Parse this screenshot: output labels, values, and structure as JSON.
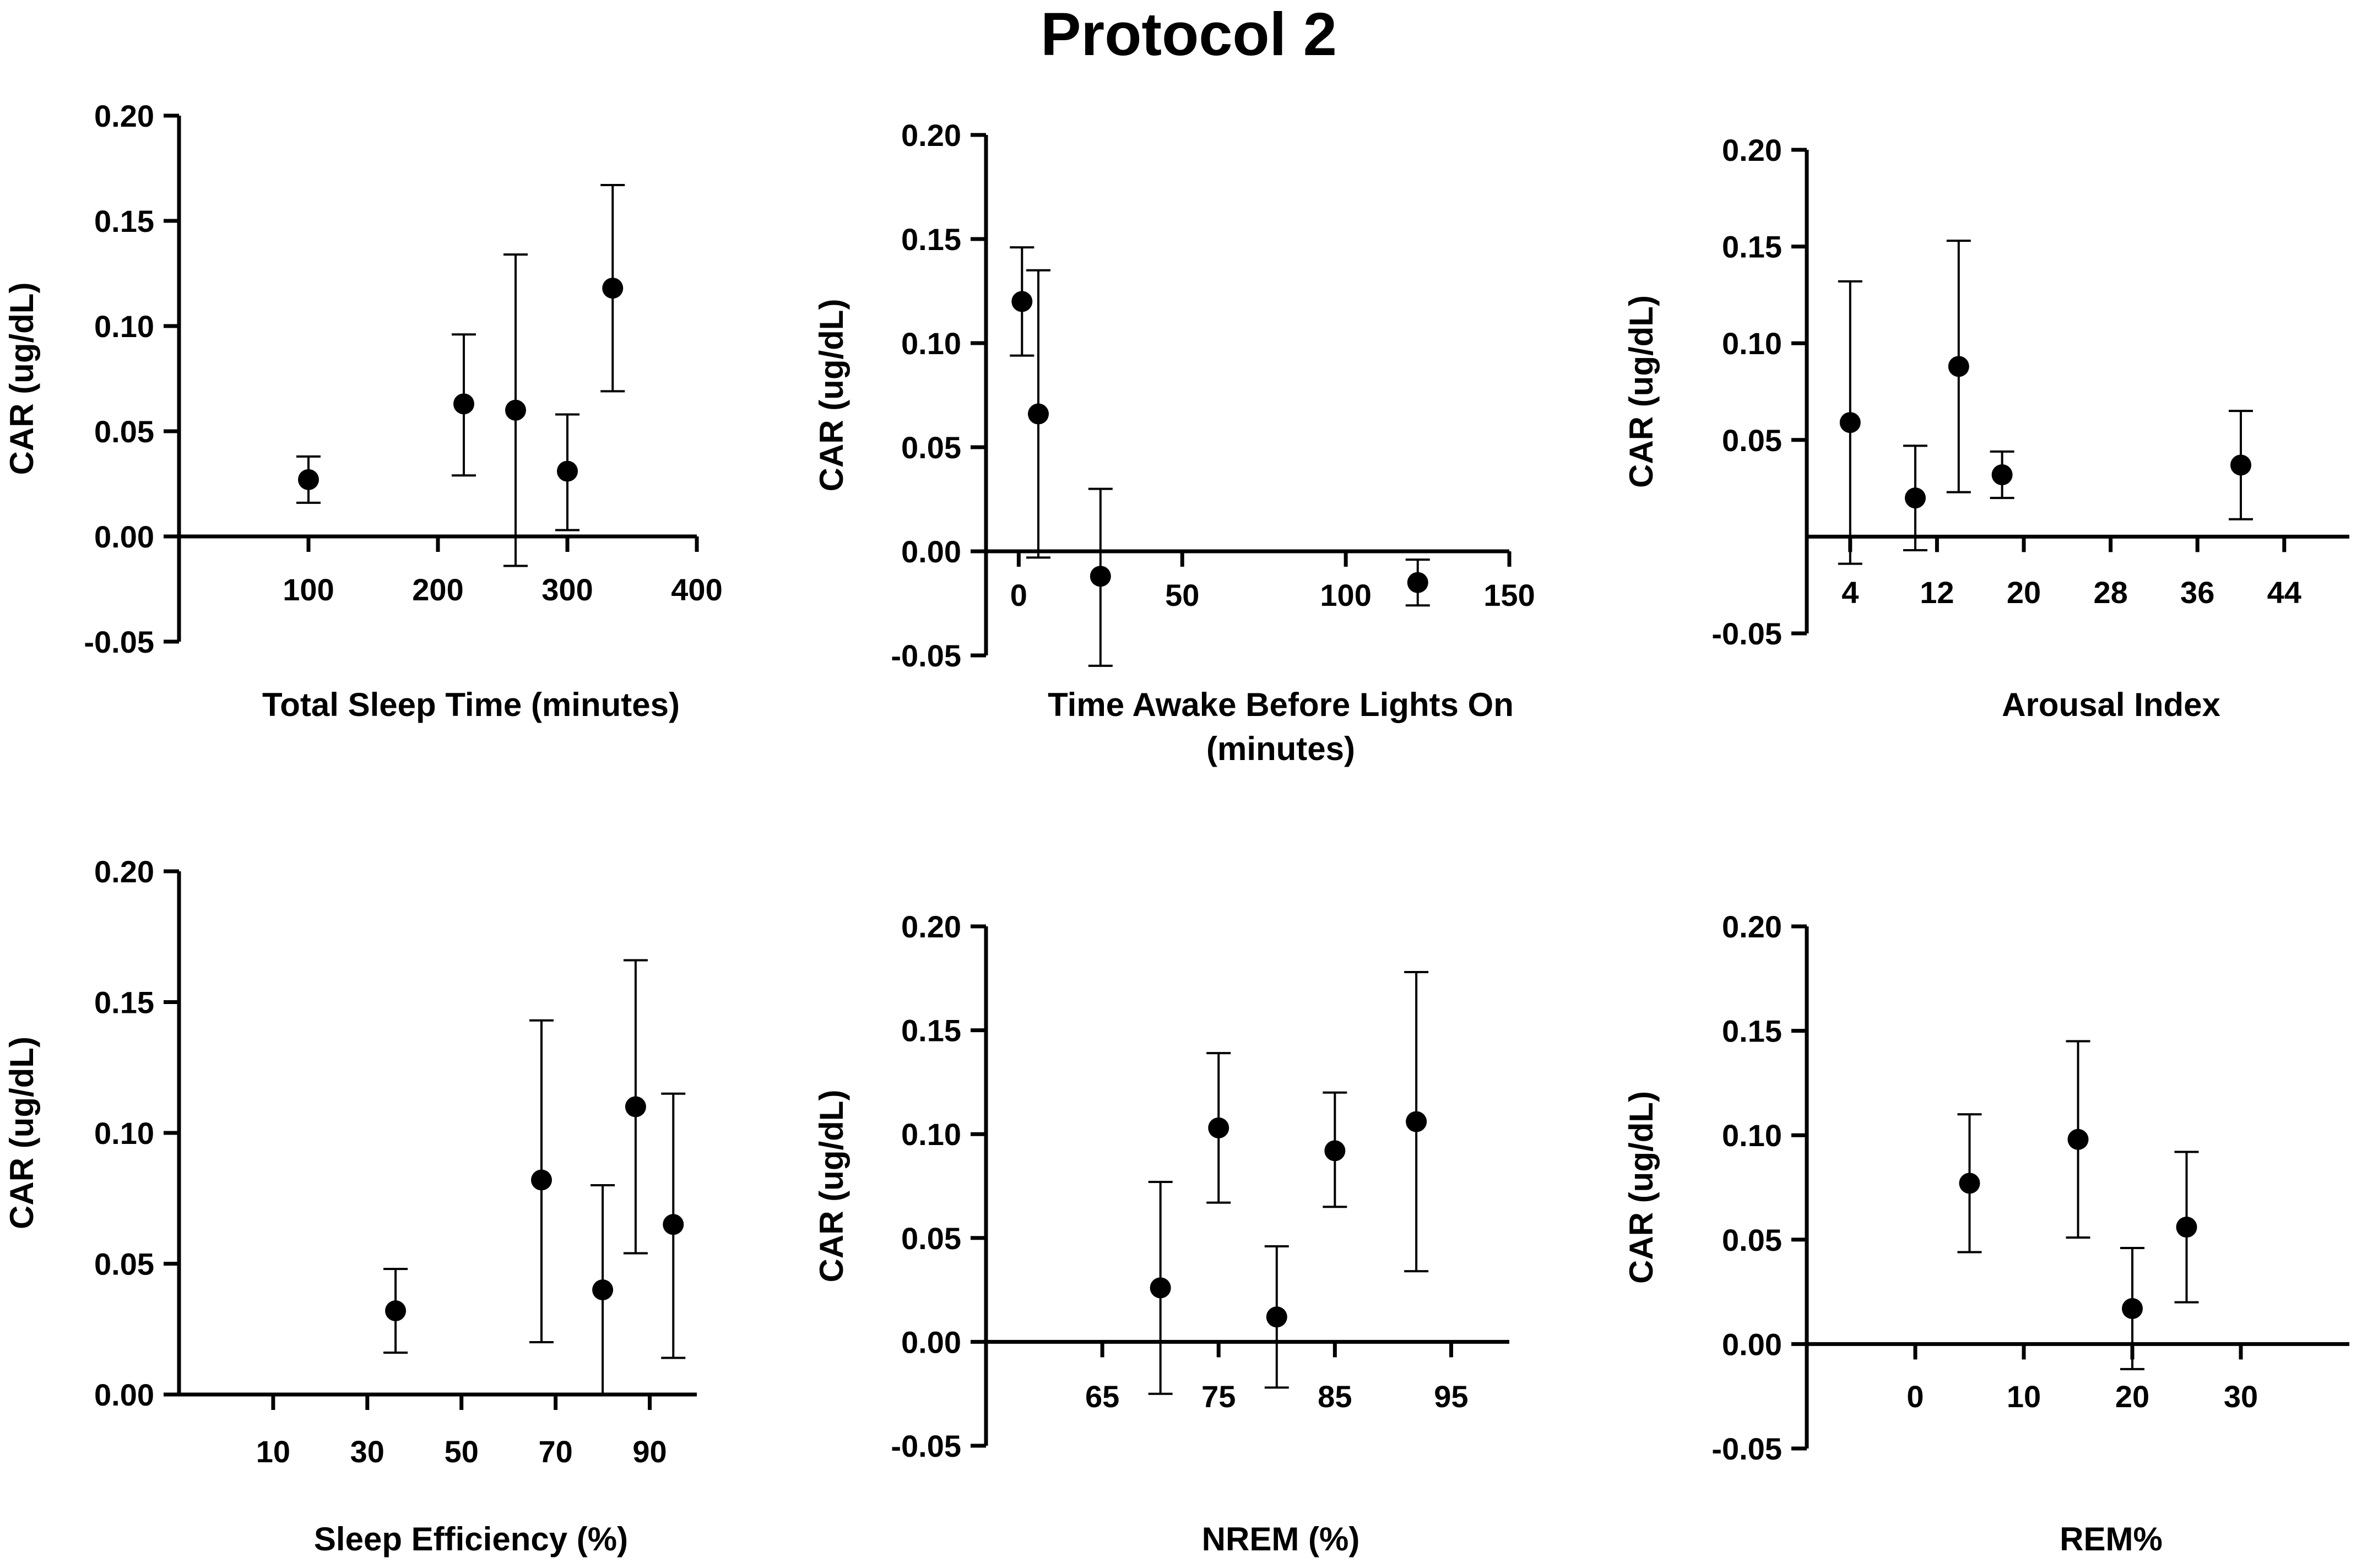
{
  "title": "Protocol 2",
  "colors": {
    "marker": "#000000",
    "axis": "#000000",
    "background": "#ffffff"
  },
  "chart_data": [
    {
      "id": "tst",
      "type": "scatter",
      "title": "",
      "xlabel": [
        "Total Sleep Time (minutes)"
      ],
      "ylabel": "CAR (ug/dL)",
      "xlim": [
        0,
        400
      ],
      "ylim": [
        -0.05,
        0.2
      ],
      "xticks": [
        100,
        200,
        300,
        400
      ],
      "yticks": [
        -0.05,
        0.0,
        0.05,
        0.1,
        0.15,
        0.2
      ],
      "ytick_labels": [
        "-0.05",
        "0.00",
        "0.05",
        "0.10",
        "0.15",
        "0.20"
      ],
      "x_axis_at_y": 0,
      "points": [
        {
          "x": 100,
          "y": 0.027,
          "err_low": 0.016,
          "err_high": 0.038
        },
        {
          "x": 220,
          "y": 0.063,
          "err_low": 0.029,
          "err_high": 0.096
        },
        {
          "x": 260,
          "y": 0.06,
          "err_low": -0.014,
          "err_high": 0.134
        },
        {
          "x": 300,
          "y": 0.031,
          "err_low": 0.003,
          "err_high": 0.058
        },
        {
          "x": 335,
          "y": 0.118,
          "err_low": 0.069,
          "err_high": 0.167
        }
      ]
    },
    {
      "id": "awake",
      "type": "scatter",
      "title": "",
      "xlabel": [
        "Time Awake Before Lights On",
        "(minutes)"
      ],
      "ylabel": "CAR (ug/dL)",
      "xlim": [
        -10,
        150
      ],
      "ylim": [
        -0.05,
        0.2
      ],
      "xticks": [
        0,
        50,
        100,
        150
      ],
      "yticks": [
        -0.05,
        0.0,
        0.05,
        0.1,
        0.15,
        0.2
      ],
      "ytick_labels": [
        "-0.05",
        "0.00",
        "0.05",
        "0.10",
        "0.15",
        "0.20"
      ],
      "x_axis_at_y": 0,
      "points": [
        {
          "x": 1,
          "y": 0.12,
          "err_low": 0.094,
          "err_high": 0.146
        },
        {
          "x": 6,
          "y": 0.066,
          "err_low": -0.003,
          "err_high": 0.135
        },
        {
          "x": 25,
          "y": -0.012,
          "err_low": -0.055,
          "err_high": 0.03
        },
        {
          "x": 122,
          "y": -0.015,
          "err_low": -0.026,
          "err_high": -0.004
        }
      ]
    },
    {
      "id": "arousal",
      "type": "scatter",
      "title": "",
      "xlabel": [
        "Arousal Index"
      ],
      "ylabel": "CAR (ug/dL)",
      "xlim": [
        0,
        50
      ],
      "ylim": [
        -0.05,
        0.2
      ],
      "xticks": [
        4,
        12,
        20,
        28,
        36,
        44
      ],
      "yticks": [
        -0.05,
        0.05,
        0.1,
        0.15,
        0.2
      ],
      "ytick_labels": [
        "-0.05",
        "0.05",
        "0.10",
        "0.15",
        "0.20"
      ],
      "x_axis_at_y": 0,
      "points": [
        {
          "x": 4,
          "y": 0.059,
          "err_low": -0.014,
          "err_high": 0.132
        },
        {
          "x": 10,
          "y": 0.02,
          "err_low": -0.007,
          "err_high": 0.047
        },
        {
          "x": 14,
          "y": 0.088,
          "err_low": 0.023,
          "err_high": 0.153
        },
        {
          "x": 18,
          "y": 0.032,
          "err_low": 0.02,
          "err_high": 0.044
        },
        {
          "x": 40,
          "y": 0.037,
          "err_low": 0.009,
          "err_high": 0.065
        }
      ]
    },
    {
      "id": "efficiency",
      "type": "scatter",
      "title": "",
      "xlabel": [
        "Sleep Efficiency (%)"
      ],
      "ylabel": "CAR (ug/dL)",
      "xlim": [
        -10,
        100
      ],
      "ylim": [
        0.0,
        0.2
      ],
      "xticks": [
        10,
        30,
        50,
        70,
        90
      ],
      "yticks": [
        0.0,
        0.05,
        0.1,
        0.15,
        0.2
      ],
      "ytick_labels": [
        "0.00",
        "0.05",
        "0.10",
        "0.15",
        "0.20"
      ],
      "x_axis_at_y": 0,
      "points": [
        {
          "x": 36,
          "y": 0.032,
          "err_low": 0.016,
          "err_high": 0.048
        },
        {
          "x": 67,
          "y": 0.082,
          "err_low": 0.02,
          "err_high": 0.143
        },
        {
          "x": 80,
          "y": 0.04,
          "err_low": 0.0,
          "err_high": 0.08
        },
        {
          "x": 87,
          "y": 0.11,
          "err_low": 0.054,
          "err_high": 0.166
        },
        {
          "x": 95,
          "y": 0.065,
          "err_low": 0.014,
          "err_high": 0.115
        }
      ]
    },
    {
      "id": "nrem",
      "type": "scatter",
      "title": "",
      "xlabel": [
        "NREM (%)"
      ],
      "ylabel": "CAR (ug/dL)",
      "xlim": [
        55,
        100
      ],
      "ylim": [
        -0.05,
        0.2
      ],
      "xticks": [
        65,
        75,
        85,
        95
      ],
      "yticks": [
        -0.05,
        0.0,
        0.05,
        0.1,
        0.15,
        0.2
      ],
      "ytick_labels": [
        "-0.05",
        "0.00",
        "0.05",
        "0.10",
        "0.15",
        "0.20"
      ],
      "x_axis_at_y": 0,
      "points": [
        {
          "x": 70,
          "y": 0.026,
          "err_low": -0.025,
          "err_high": 0.077
        },
        {
          "x": 75,
          "y": 0.103,
          "err_low": 0.067,
          "err_high": 0.139
        },
        {
          "x": 80,
          "y": 0.012,
          "err_low": -0.022,
          "err_high": 0.046
        },
        {
          "x": 85,
          "y": 0.092,
          "err_low": 0.065,
          "err_high": 0.12
        },
        {
          "x": 92,
          "y": 0.106,
          "err_low": 0.034,
          "err_high": 0.178
        }
      ]
    },
    {
      "id": "rem",
      "type": "scatter",
      "title": "",
      "xlabel": [
        "REM%"
      ],
      "ylabel": "CAR (ug/dL)",
      "xlim": [
        -10,
        40
      ],
      "ylim": [
        -0.05,
        0.2
      ],
      "xticks": [
        0,
        10,
        20,
        30
      ],
      "yticks": [
        -0.05,
        0.0,
        0.05,
        0.1,
        0.15,
        0.2
      ],
      "ytick_labels": [
        "-0.05",
        "0.00",
        "0.05",
        "0.10",
        "0.15",
        "0.20"
      ],
      "x_axis_at_y": 0,
      "points": [
        {
          "x": 5,
          "y": 0.077,
          "err_low": 0.044,
          "err_high": 0.11
        },
        {
          "x": 15,
          "y": 0.098,
          "err_low": 0.051,
          "err_high": 0.145
        },
        {
          "x": 20,
          "y": 0.017,
          "err_low": -0.012,
          "err_high": 0.046
        },
        {
          "x": 25,
          "y": 0.056,
          "err_low": 0.02,
          "err_high": 0.092
        }
      ]
    }
  ]
}
